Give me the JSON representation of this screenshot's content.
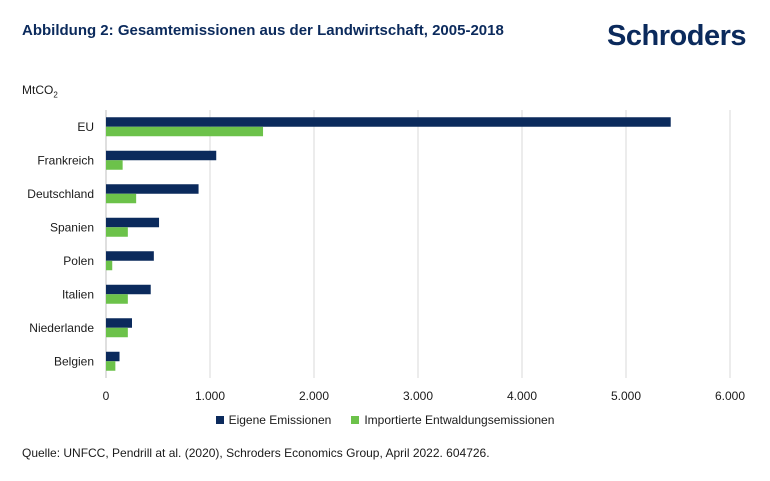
{
  "header": {
    "title": "Abbildung 2: Gesamtemissionen aus der Landwirtschaft, 2005-2018",
    "logo": "Schroders"
  },
  "unit_label": {
    "base": "MtCO",
    "sub": "2"
  },
  "footer": {
    "source": "Quelle: UNFCC, Pendrill at al. (2020), Schroders Economics Group, April 2022. 604726."
  },
  "colors": {
    "series1": "#0b2a5c",
    "series2": "#6cc24a",
    "grid": "#d9d9d9"
  },
  "chart_data": {
    "type": "bar",
    "orientation": "horizontal",
    "categories": [
      "EU",
      "Frankreich",
      "Deutschland",
      "Spanien",
      "Polen",
      "Italien",
      "Niederlande",
      "Belgien"
    ],
    "series": [
      {
        "name": "Eigene Emissionen",
        "values": [
          5430,
          1060,
          890,
          510,
          460,
          430,
          250,
          130
        ]
      },
      {
        "name": "Importierte Entwaldungsemissionen",
        "values": [
          1510,
          160,
          290,
          210,
          60,
          210,
          210,
          90
        ]
      }
    ],
    "xlim": [
      0,
      6000
    ],
    "xticks": [
      0,
      1000,
      2000,
      3000,
      4000,
      5000,
      6000
    ],
    "xtick_labels": [
      "0",
      "1.000",
      "2.000",
      "3.000",
      "4.000",
      "5.000",
      "6.000"
    ],
    "grid": true,
    "legend_position": "bottom-center"
  }
}
